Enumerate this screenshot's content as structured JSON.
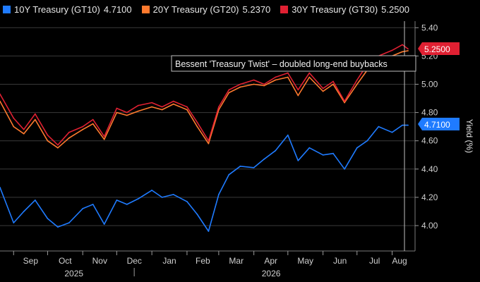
{
  "legend": {
    "s10": {
      "name": "10Y Treasury (GT10)",
      "value": "4.7100"
    },
    "s20": {
      "name": "20Y Treasury (GT20)",
      "value": "5.2370"
    },
    "s30": {
      "name": "30Y Treasury (GT30)",
      "value": "5.2500"
    }
  },
  "annotation": "Bessent 'Treasury Twist' – doubled long-end buybacks",
  "tags": {
    "top": "5.2500",
    "bottom": "4.7100"
  },
  "chart_data": {
    "type": "line",
    "ylabel": "Yield (%)",
    "ylim": [
      3.9,
      5.5
    ],
    "yticks": [
      "5.40",
      "5.20",
      "5.00",
      "4.80",
      "4.60",
      "4.40",
      "4.20",
      "4.00"
    ],
    "ytick_values": [
      5.4,
      5.2,
      5.0,
      4.8,
      4.6,
      4.4,
      4.2,
      4.0
    ],
    "month_labels": [
      "Sep",
      "Oct",
      "Nov",
      "Dec",
      "Jan",
      "Feb",
      "Mar",
      "Apr",
      "May",
      "Jun",
      "Jul",
      "Aug"
    ],
    "year_labels": [
      "2025",
      "2026"
    ],
    "x": [
      "2025-08-20",
      "2025-09-01",
      "2025-09-10",
      "2025-09-20",
      "2025-10-01",
      "2025-10-10",
      "2025-10-20",
      "2025-11-01",
      "2025-11-10",
      "2025-11-20",
      "2025-12-01",
      "2025-12-10",
      "2025-12-20",
      "2026-01-01",
      "2026-01-10",
      "2026-01-20",
      "2026-02-01",
      "2026-02-10",
      "2026-02-20",
      "2026-03-01",
      "2026-03-10",
      "2026-03-20",
      "2026-04-01",
      "2026-04-10",
      "2026-04-20",
      "2026-05-01",
      "2026-05-10",
      "2026-05-20",
      "2026-06-01",
      "2026-06-10",
      "2026-06-20",
      "2026-07-01",
      "2026-07-10",
      "2026-07-20",
      "2026-08-01",
      "2026-08-10",
      "2026-08-15"
    ],
    "series": [
      {
        "name": "10Y Treasury (GT10)",
        "color": "#1f7bff",
        "values": [
          4.27,
          4.02,
          4.1,
          4.18,
          4.05,
          3.99,
          4.02,
          4.12,
          4.15,
          4.01,
          4.18,
          4.15,
          4.19,
          4.25,
          4.2,
          4.22,
          4.17,
          4.08,
          3.96,
          4.22,
          4.36,
          4.42,
          4.41,
          4.47,
          4.53,
          4.64,
          4.46,
          4.55,
          4.5,
          4.51,
          4.4,
          4.55,
          4.6,
          4.7,
          4.66,
          4.71,
          4.71
        ]
      },
      {
        "name": "20Y Treasury (GT20)",
        "color": "#ff7a2e",
        "values": [
          4.88,
          4.7,
          4.65,
          4.75,
          4.6,
          4.55,
          4.62,
          4.68,
          4.72,
          4.61,
          4.8,
          4.78,
          4.81,
          4.84,
          4.82,
          4.86,
          4.82,
          4.7,
          4.58,
          4.82,
          4.94,
          4.98,
          5.0,
          4.99,
          5.03,
          5.05,
          4.92,
          5.05,
          4.95,
          5.0,
          4.87,
          5.0,
          5.1,
          5.15,
          5.2,
          5.23,
          5.237
        ]
      },
      {
        "name": "30Y Treasury (GT30)",
        "color": "#e02032",
        "values": [
          4.93,
          4.76,
          4.68,
          4.79,
          4.64,
          4.57,
          4.66,
          4.7,
          4.75,
          4.63,
          4.83,
          4.8,
          4.85,
          4.87,
          4.84,
          4.88,
          4.84,
          4.73,
          4.6,
          4.84,
          4.96,
          5.0,
          5.03,
          5.0,
          5.05,
          5.08,
          4.96,
          5.08,
          4.97,
          5.02,
          4.88,
          5.03,
          5.14,
          5.2,
          5.24,
          5.28,
          5.25
        ]
      }
    ]
  }
}
